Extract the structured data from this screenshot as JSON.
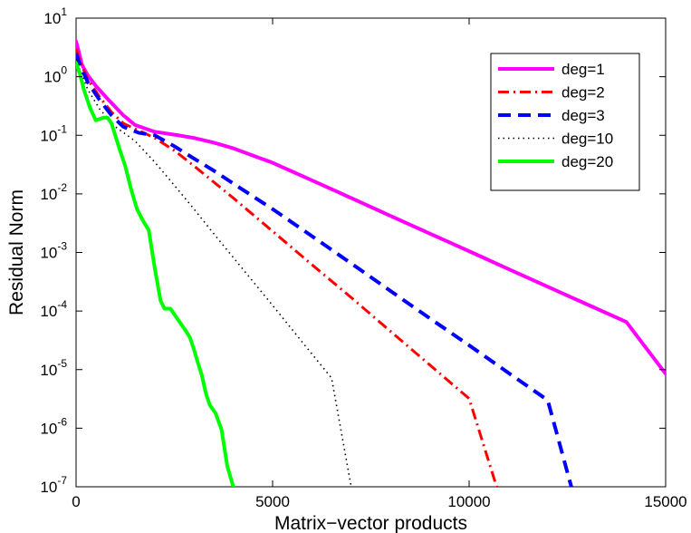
{
  "chart_data": {
    "type": "line",
    "title": "",
    "xlabel": "Matrix−vector products",
    "ylabel": "Residual Norm",
    "xlim": [
      0,
      15000
    ],
    "ylim": [
      1e-07,
      10
    ],
    "yscale": "log",
    "grid": false,
    "legend_position": "top-right",
    "x_ticks": [
      0,
      5000,
      10000,
      15000
    ],
    "x_tick_labels": [
      "0",
      "5000",
      "10000",
      "15000"
    ],
    "y_ticks": [
      {
        "value": 1e-07,
        "base": "10",
        "exp": "-7"
      },
      {
        "value": 1e-06,
        "base": "10",
        "exp": "-6"
      },
      {
        "value": 1e-05,
        "base": "10",
        "exp": "-5"
      },
      {
        "value": 0.0001,
        "base": "10",
        "exp": "-4"
      },
      {
        "value": 0.001,
        "base": "10",
        "exp": "-3"
      },
      {
        "value": 0.01,
        "base": "10",
        "exp": "-2"
      },
      {
        "value": 0.1,
        "base": "10",
        "exp": "-1"
      },
      {
        "value": 1,
        "base": "10",
        "exp": "0"
      },
      {
        "value": 10,
        "base": "10",
        "exp": "1"
      }
    ],
    "series": [
      {
        "name": "deg=1",
        "color": "#ff00ff",
        "style": "solid",
        "x": [
          0,
          50,
          150,
          300,
          500,
          800,
          1200,
          1500,
          2000,
          2600,
          3000,
          3500,
          4000,
          4500,
          5000,
          6000,
          7000,
          8000,
          9000,
          10000,
          11000,
          12000,
          13000,
          14000,
          15000
        ],
        "y": [
          4.0,
          3.0,
          1.6,
          1.05,
          0.7,
          0.42,
          0.22,
          0.15,
          0.115,
          0.1,
          0.09,
          0.075,
          0.06,
          0.045,
          0.034,
          0.017,
          0.0085,
          0.0042,
          0.0021,
          0.00105,
          0.00052,
          0.00026,
          0.00013,
          6.5e-05,
          8.5e-06
        ]
      },
      {
        "name": "deg=2",
        "color": "#ff0000",
        "style": "dashdot",
        "x": [
          0,
          100,
          300,
          600,
          900,
          1200,
          1600,
          2000,
          2500,
          3000,
          4000,
          5000,
          6000,
          7000,
          8000,
          9000,
          10000,
          10700
        ],
        "y": [
          3.0,
          1.8,
          0.9,
          0.45,
          0.25,
          0.16,
          0.12,
          0.09,
          0.055,
          0.03,
          0.0085,
          0.0023,
          0.00062,
          0.00017,
          4.5e-05,
          1.2e-05,
          3.2e-06,
          1e-07
        ]
      },
      {
        "name": "deg=3",
        "color": "#0000ff",
        "style": "dashed",
        "x": [
          0,
          100,
          300,
          600,
          900,
          1200,
          1600,
          2000,
          2500,
          3000,
          3500,
          4000,
          5000,
          6000,
          7000,
          8000,
          9000,
          10000,
          11000,
          12000,
          12600
        ],
        "y": [
          2.5,
          1.6,
          0.8,
          0.4,
          0.22,
          0.14,
          0.11,
          0.1,
          0.065,
          0.04,
          0.025,
          0.015,
          0.0055,
          0.0019,
          0.00065,
          0.00022,
          7.5e-05,
          2.6e-05,
          8.8e-06,
          3e-06,
          1e-07
        ]
      },
      {
        "name": "deg=10",
        "color": "#000000",
        "style": "dotted",
        "x": [
          0,
          100,
          300,
          600,
          1000,
          1500,
          2000,
          2500,
          3000,
          3500,
          4000,
          4500,
          5000,
          5500,
          6000,
          6500,
          7000
        ],
        "y": [
          2.0,
          1.3,
          0.6,
          0.28,
          0.14,
          0.08,
          0.035,
          0.014,
          0.0055,
          0.0021,
          0.00082,
          0.00032,
          0.000125,
          4.8e-05,
          1.85e-05,
          7.2e-06,
          1e-07
        ]
      },
      {
        "name": "deg=20",
        "color": "#00ff00",
        "style": "solid",
        "x": [
          0,
          100,
          200,
          350,
          500,
          700,
          800,
          900,
          1100,
          1250,
          1400,
          1550,
          1700,
          1850,
          2000,
          2150,
          2250,
          2400,
          2600,
          2800,
          2900,
          3000,
          3100,
          3200,
          3300,
          3400,
          3550,
          3700,
          3850,
          4000
        ],
        "y": [
          1.7,
          1.1,
          0.6,
          0.3,
          0.18,
          0.2,
          0.2,
          0.16,
          0.06,
          0.03,
          0.012,
          0.0055,
          0.0035,
          0.0024,
          0.00055,
          0.00015,
          0.00011,
          0.00011,
          7e-05,
          4.5e-05,
          3.5e-05,
          2.2e-05,
          1.3e-05,
          8e-06,
          4e-06,
          2.5e-06,
          1.8e-06,
          9.5e-07,
          2.2e-07,
          1e-07
        ]
      }
    ]
  }
}
